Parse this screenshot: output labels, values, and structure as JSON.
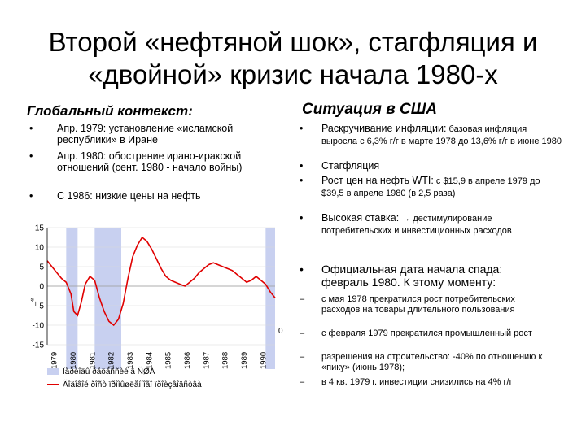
{
  "slide": {
    "title_line1": "Второй «нефтяной шок», стагфляция и",
    "title_line2": "«двойной» кризис начала 1980-х"
  },
  "left": {
    "heading": "Глобальный контекст:",
    "bullets": [
      {
        "marker": "•",
        "text": "Апр. 1979: установление «исламской республики» в Иране"
      },
      {
        "marker": "•",
        "text": "Апр. 1980: обострение ирано-иракской отношений (сент. 1980 - начало войны)"
      },
      {
        "marker": "•",
        "text": "С 1986: низкие цены на нефть"
      }
    ]
  },
  "right": {
    "heading": "Ситуация в США",
    "items": [
      {
        "marker": "•",
        "lead": "Раскручивание инфляции:",
        "rest": " базовая инфляция выросла с 6,3% г/г в марте 1978 до 13,6% г/г в июне 1980"
      },
      {
        "marker": "•",
        "lead": "Стагфляция",
        "rest": ""
      },
      {
        "marker": "•",
        "lead": "Рост цен на нефть WTI:",
        "rest": " с $15,9 в апреле 1979 до $39,5 в апреле 1980 (в 2,5 раза)"
      },
      {
        "marker": "•",
        "lead": "Высокая ставка:",
        "rest": " → дестимулирование потребительских и инвестиционных расходов"
      },
      {
        "marker": "•",
        "lead": "Официальная дата начала спада: февраль 1980. К этому моменту:",
        "rest": ""
      },
      {
        "marker": "–",
        "lead": "",
        "rest": "с мая 1978 прекратился рост потребительских расходов на товары длительного пользования"
      },
      {
        "marker": "–",
        "lead": "",
        "rest": "с февраля 1979 прекратился промышленный рост"
      },
      {
        "marker": "–",
        "lead": "",
        "rest": "разрешения на строительство: -40% по отношению к «пику» (июнь 1978);"
      },
      {
        "marker": "–",
        "lead": "",
        "rest": "в 4 кв. 1979 г. инвестиции снизились на 4% г/г"
      }
    ]
  },
  "chart_data": {
    "type": "line",
    "ylim": [
      -15,
      15
    ],
    "yticks": [
      "15",
      "10",
      "5",
      "0",
      "-5",
      "-10",
      "-15"
    ],
    "y2_tick": "0",
    "xlim": [
      1979,
      1991
    ],
    "xticks": [
      "1979",
      "1980",
      "1981",
      "1982",
      "1983",
      "1984",
      "1985",
      "1986",
      "1987",
      "1988",
      "1989",
      "1990"
    ],
    "ylabel": "_«",
    "recessions": [
      [
        1980.0,
        1980.6
      ],
      [
        1981.5,
        1982.9
      ],
      [
        1990.5,
        1991.0
      ]
    ],
    "series": [
      {
        "name": "Ïåðèîäû ðåöåññèé â ÑØÀ",
        "color": "#c8d0f0",
        "kind": "bar"
      },
      {
        "name": "Ãîäîâîé ðîñò ïðîìûøëåííîãî ïðîèçâîäñòâà",
        "color": "#e00000",
        "x": [
          1979.0,
          1979.25,
          1979.5,
          1979.75,
          1980.0,
          1980.25,
          1980.4,
          1980.6,
          1980.8,
          1981.0,
          1981.25,
          1981.5,
          1981.75,
          1982.0,
          1982.25,
          1982.5,
          1982.75,
          1983.0,
          1983.25,
          1983.5,
          1983.75,
          1984.0,
          1984.25,
          1984.5,
          1984.75,
          1985.0,
          1985.25,
          1985.5,
          1985.75,
          1986.0,
          1986.25,
          1986.5,
          1986.75,
          1987.0,
          1987.25,
          1987.5,
          1987.75,
          1988.0,
          1988.25,
          1988.5,
          1988.75,
          1989.0,
          1989.25,
          1989.5,
          1989.75,
          1990.0,
          1990.25,
          1990.5,
          1990.75,
          1991.0
        ],
        "y": [
          6.5,
          5.0,
          3.5,
          2.0,
          1.0,
          -2.0,
          -6.5,
          -7.5,
          -4.0,
          0.5,
          2.5,
          1.5,
          -3.0,
          -6.5,
          -9.0,
          -10.0,
          -8.5,
          -4.5,
          2.0,
          7.5,
          10.5,
          12.5,
          11.5,
          9.5,
          7.0,
          4.5,
          2.5,
          1.5,
          1.0,
          0.5,
          0.0,
          1.0,
          2.0,
          3.5,
          4.5,
          5.5,
          6.0,
          5.5,
          5.0,
          4.5,
          4.0,
          3.0,
          2.0,
          1.0,
          1.5,
          2.5,
          1.5,
          0.5,
          -1.5,
          -3.0
        ]
      }
    ]
  }
}
